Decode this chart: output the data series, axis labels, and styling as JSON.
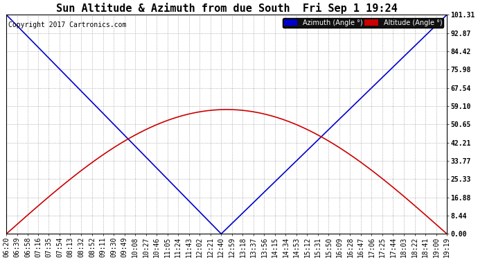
{
  "title": "Sun Altitude & Azimuth from due South  Fri Sep 1 19:24",
  "copyright": "Copyright 2017 Cartronics.com",
  "yticks": [
    0.0,
    8.44,
    16.88,
    25.33,
    33.77,
    42.21,
    50.65,
    59.1,
    67.54,
    75.98,
    84.42,
    92.87,
    101.31
  ],
  "ymax": 101.31,
  "ymin": 0.0,
  "azimuth_color": "#0000cc",
  "altitude_color": "#cc0000",
  "background_color": "#ffffff",
  "plot_bg_color": "#ffffff",
  "grid_color": "#999999",
  "legend_azimuth_bg": "#0000cc",
  "legend_altitude_bg": "#cc0000",
  "solar_noon_label": "12:40",
  "max_altitude": 57.5,
  "title_fontsize": 11,
  "axis_fontsize": 7,
  "copyright_fontsize": 7,
  "x_labels": [
    "06:20",
    "06:39",
    "06:58",
    "07:16",
    "07:35",
    "07:54",
    "08:13",
    "08:32",
    "08:52",
    "09:11",
    "09:30",
    "09:49",
    "10:08",
    "10:27",
    "10:46",
    "11:05",
    "11:24",
    "11:43",
    "12:02",
    "12:21",
    "12:40",
    "12:59",
    "13:18",
    "13:37",
    "13:56",
    "14:15",
    "14:34",
    "14:53",
    "15:12",
    "15:31",
    "15:50",
    "16:09",
    "16:28",
    "16:47",
    "17:06",
    "17:25",
    "17:44",
    "18:03",
    "18:22",
    "18:41",
    "19:00",
    "19:19"
  ]
}
